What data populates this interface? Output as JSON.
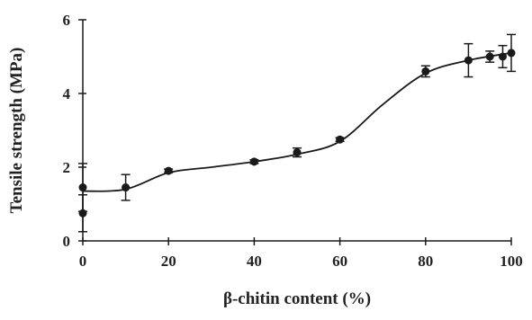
{
  "chart_data": {
    "type": "scatter",
    "xlabel": "β-chitin content (%)",
    "ylabel": "Tensile strength (MPa)",
    "xlim": [
      0,
      100
    ],
    "xticks": [
      0,
      20,
      40,
      60,
      80,
      100
    ],
    "ylim": [
      0,
      6
    ],
    "yticks": [
      0,
      2,
      4,
      6
    ],
    "color": "#1a1a1a",
    "series": [
      {
        "x": [
          0,
          0,
          10,
          20,
          40,
          50,
          60,
          80,
          90,
          95,
          98,
          100
        ],
        "values": [
          0.75,
          1.45,
          1.45,
          1.9,
          2.15,
          2.4,
          2.75,
          4.6,
          4.9,
          5.0,
          5.0,
          5.1
        ],
        "errors": [
          0.5,
          0.65,
          0.35,
          0.05,
          0.05,
          0.12,
          0.05,
          0.15,
          0.45,
          0.15,
          0.3,
          0.5
        ]
      }
    ],
    "curve": {
      "x": [
        0,
        10,
        20,
        30,
        40,
        50,
        60,
        70,
        80,
        90,
        100
      ],
      "values": [
        1.35,
        1.4,
        1.85,
        2.0,
        2.15,
        2.35,
        2.7,
        3.7,
        4.55,
        4.9,
        5.1
      ]
    }
  }
}
